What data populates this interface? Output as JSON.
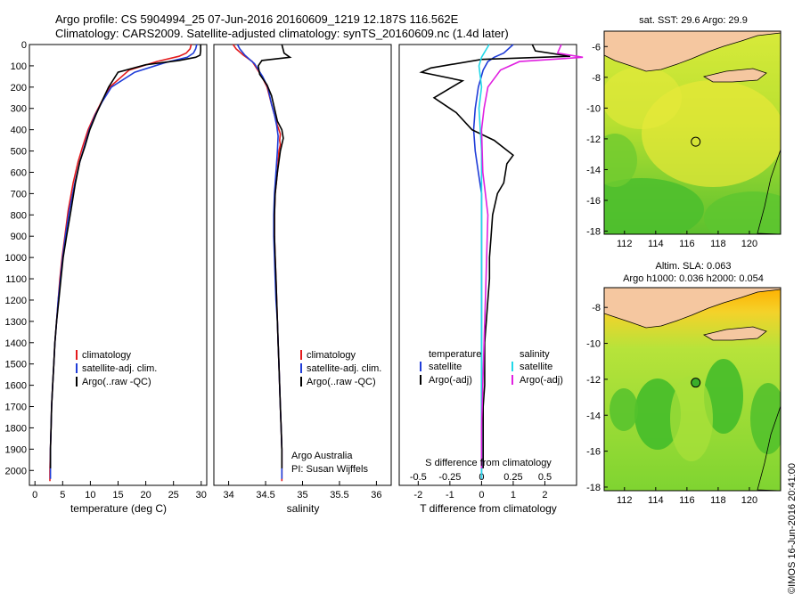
{
  "header": {
    "line1": "Argo profile: CS 5904994_25 07-Jun-2016 20160609_1219 12.187S 116.562E",
    "line2": "Climatology: CARS2009. Satellite-adjusted climatology: synTS_20160609.nc (1.4d later)"
  },
  "colors": {
    "climatology": "#e41a1c",
    "satellite": "#1f3cd8",
    "argo": "#000000",
    "sat_s": "#22d8e8",
    "argo_s": "#e020e0"
  },
  "legend": {
    "climatology": "climatology",
    "satellite": "satellite-adj. clim.",
    "argo": "Argo(..raw -QC)",
    "diff_temperature": "temperature",
    "diff_salinity": "salinity",
    "diff_satellite": "satellite",
    "diff_argo": "Argo(-adj)"
  },
  "annotations": {
    "project": "Argo Australia",
    "pi": "PI: Susan Wijffels"
  },
  "maps": {
    "sst_label": "sat. SST: 29.6 Argo: 29.9",
    "sla_line1": "Altim. SLA: 0.063",
    "sla_line2": "Argo h1000: 0.036 h2000: 0.054",
    "float_lon": 116.562,
    "float_lat": -12.187,
    "x_ticks": [
      112,
      114,
      116,
      118,
      120
    ],
    "sst_y_ticks": [
      -6,
      -8,
      -10,
      -12,
      -14,
      -16,
      -18
    ],
    "sla_y_ticks": [
      -8,
      -10,
      -12,
      -14,
      -16,
      -18
    ]
  },
  "credit": "©IMOS 16-Jun-2016 20:41:00",
  "chart_data": [
    {
      "type": "line",
      "title": "",
      "xlabel": "temperature (deg C)",
      "ylabel": "",
      "xlim": [
        -1,
        31
      ],
      "ylim": [
        2070,
        0
      ],
      "x_ticks": [
        0,
        5,
        10,
        15,
        20,
        25,
        30
      ],
      "y_ticks": [
        0,
        100,
        200,
        300,
        400,
        500,
        600,
        700,
        800,
        900,
        1000,
        1100,
        1200,
        1300,
        1400,
        1500,
        1600,
        1700,
        1800,
        1900,
        2000
      ],
      "series": [
        {
          "name": "climatology",
          "points": [
            [
              28.2,
              0
            ],
            [
              28.0,
              20
            ],
            [
              27.3,
              40
            ],
            [
              26.0,
              55
            ],
            [
              22.0,
              80
            ],
            [
              17.0,
              120
            ],
            [
              13.5,
              200
            ],
            [
              12.0,
              270
            ],
            [
              10.8,
              330
            ],
            [
              9.6,
              400
            ],
            [
              8.6,
              480
            ],
            [
              7.8,
              550
            ],
            [
              6.9,
              650
            ],
            [
              6.0,
              780
            ],
            [
              5.4,
              900
            ],
            [
              4.9,
              1000
            ],
            [
              4.5,
              1100
            ],
            [
              4.2,
              1200
            ],
            [
              3.9,
              1300
            ],
            [
              3.6,
              1400
            ],
            [
              3.4,
              1500
            ],
            [
              3.2,
              1600
            ],
            [
              3.0,
              1700
            ],
            [
              2.9,
              1800
            ],
            [
              2.8,
              1900
            ],
            [
              2.7,
              2000
            ],
            [
              2.7,
              2050
            ]
          ]
        },
        {
          "name": "satellite-adj. clim.",
          "points": [
            [
              29.2,
              0
            ],
            [
              29.0,
              20
            ],
            [
              28.6,
              40
            ],
            [
              27.5,
              60
            ],
            [
              23.5,
              85
            ],
            [
              18.0,
              130
            ],
            [
              13.8,
              200
            ],
            [
              12.1,
              270
            ],
            [
              10.9,
              330
            ],
            [
              9.8,
              400
            ],
            [
              8.9,
              480
            ],
            [
              8.1,
              550
            ],
            [
              7.2,
              650
            ],
            [
              6.2,
              780
            ],
            [
              5.5,
              900
            ],
            [
              5.0,
              1000
            ],
            [
              4.6,
              1100
            ],
            [
              4.2,
              1200
            ],
            [
              3.9,
              1300
            ],
            [
              3.6,
              1400
            ],
            [
              3.4,
              1500
            ],
            [
              3.2,
              1600
            ],
            [
              3.0,
              1700
            ],
            [
              2.9,
              1800
            ],
            [
              2.8,
              1900
            ],
            [
              2.8,
              2000
            ],
            [
              2.8,
              2040
            ]
          ]
        },
        {
          "name": "Argo(..raw -QC)",
          "points": [
            [
              29.9,
              0
            ],
            [
              29.9,
              30
            ],
            [
              29.8,
              50
            ],
            [
              29.0,
              60
            ],
            [
              26.0,
              75
            ],
            [
              20.0,
              95
            ],
            [
              15.0,
              130
            ],
            [
              13.3,
              200
            ],
            [
              12.2,
              260
            ],
            [
              11.0,
              330
            ],
            [
              9.9,
              400
            ],
            [
              9.0,
              480
            ],
            [
              8.1,
              550
            ],
            [
              7.3,
              650
            ],
            [
              6.5,
              780
            ],
            [
              5.7,
              900
            ],
            [
              5.1,
              1000
            ],
            [
              4.7,
              1100
            ],
            [
              4.3,
              1200
            ],
            [
              3.9,
              1300
            ],
            [
              3.6,
              1400
            ],
            [
              3.4,
              1500
            ],
            [
              3.2,
              1600
            ],
            [
              3.0,
              1700
            ],
            [
              2.9,
              1800
            ],
            [
              2.8,
              1900
            ],
            [
              2.8,
              1990
            ]
          ]
        }
      ]
    },
    {
      "type": "line",
      "title": "",
      "xlabel": "salinity",
      "ylabel": "",
      "xlim": [
        33.8,
        36.2
      ],
      "ylim": [
        2070,
        0
      ],
      "x_ticks": [
        34,
        34.5,
        35,
        35.5,
        36
      ],
      "series": [
        {
          "name": "climatology",
          "points": [
            [
              34.06,
              0
            ],
            [
              34.1,
              20
            ],
            [
              34.2,
              50
            ],
            [
              34.32,
              80
            ],
            [
              34.45,
              150
            ],
            [
              34.52,
              200
            ],
            [
              34.58,
              280
            ],
            [
              34.62,
              330
            ],
            [
              34.66,
              380
            ],
            [
              34.7,
              420
            ],
            [
              34.69,
              450
            ],
            [
              34.7,
              470
            ],
            [
              34.68,
              500
            ],
            [
              34.66,
              600
            ],
            [
              34.63,
              700
            ],
            [
              34.62,
              800
            ],
            [
              34.62,
              900
            ],
            [
              34.63,
              1000
            ],
            [
              34.64,
              1100
            ],
            [
              34.65,
              1200
            ],
            [
              34.66,
              1300
            ],
            [
              34.67,
              1400
            ],
            [
              34.68,
              1500
            ],
            [
              34.69,
              1600
            ],
            [
              34.7,
              1700
            ],
            [
              34.71,
              1800
            ],
            [
              34.72,
              1900
            ],
            [
              34.72,
              2000
            ],
            [
              34.72,
              2050
            ]
          ]
        },
        {
          "name": "satellite-adj. clim.",
          "points": [
            [
              34.12,
              0
            ],
            [
              34.15,
              20
            ],
            [
              34.22,
              50
            ],
            [
              34.35,
              90
            ],
            [
              34.46,
              150
            ],
            [
              34.53,
              200
            ],
            [
              34.58,
              280
            ],
            [
              34.62,
              330
            ],
            [
              34.65,
              380
            ],
            [
              34.67,
              430
            ],
            [
              34.66,
              500
            ],
            [
              34.64,
              600
            ],
            [
              34.62,
              700
            ],
            [
              34.61,
              800
            ],
            [
              34.61,
              900
            ],
            [
              34.62,
              1000
            ],
            [
              34.63,
              1100
            ],
            [
              34.64,
              1200
            ],
            [
              34.66,
              1300
            ],
            [
              34.67,
              1400
            ],
            [
              34.68,
              1500
            ],
            [
              34.69,
              1600
            ],
            [
              34.7,
              1700
            ],
            [
              34.71,
              1800
            ],
            [
              34.72,
              1900
            ],
            [
              34.72,
              2000
            ],
            [
              34.72,
              2040
            ]
          ]
        },
        {
          "name": "Argo(..raw -QC)",
          "points": [
            [
              34.72,
              0
            ],
            [
              34.75,
              40
            ],
            [
              34.83,
              60
            ],
            [
              34.45,
              75
            ],
            [
              34.4,
              100
            ],
            [
              34.42,
              140
            ],
            [
              34.52,
              190
            ],
            [
              34.58,
              240
            ],
            [
              34.62,
              300
            ],
            [
              34.66,
              360
            ],
            [
              34.72,
              400
            ],
            [
              34.74,
              440
            ],
            [
              34.7,
              500
            ],
            [
              34.66,
              600
            ],
            [
              34.63,
              700
            ],
            [
              34.62,
              800
            ],
            [
              34.62,
              900
            ],
            [
              34.63,
              1000
            ],
            [
              34.64,
              1100
            ],
            [
              34.65,
              1200
            ],
            [
              34.66,
              1300
            ],
            [
              34.67,
              1400
            ],
            [
              34.68,
              1500
            ],
            [
              34.69,
              1600
            ],
            [
              34.7,
              1700
            ],
            [
              34.71,
              1800
            ],
            [
              34.72,
              1900
            ],
            [
              34.72,
              1990
            ]
          ]
        }
      ]
    },
    {
      "type": "line",
      "title": "",
      "xlabel": "T difference from climatology",
      "x2label": "S difference from climatology",
      "ylabel": "",
      "xlim": [
        -2.6,
        3.0
      ],
      "ylim": [
        2070,
        0
      ],
      "x_ticks": [
        -2,
        -1,
        0,
        1,
        2
      ],
      "x2_ticks": [
        -0.5,
        -0.25,
        0,
        0.25,
        0.5
      ],
      "series": [
        {
          "name": "T satellite",
          "points": [
            [
              1.0,
              0
            ],
            [
              0.7,
              40
            ],
            [
              0.4,
              60
            ],
            [
              0.2,
              80
            ],
            [
              0.05,
              120
            ],
            [
              -0.1,
              200
            ],
            [
              -0.2,
              300
            ],
            [
              -0.25,
              400
            ],
            [
              -0.2,
              500
            ],
            [
              -0.1,
              600
            ],
            [
              0.0,
              700
            ],
            [
              0.0,
              800
            ],
            [
              0.0,
              1000
            ],
            [
              0.0,
              1200
            ],
            [
              0.0,
              1400
            ],
            [
              0.0,
              1600
            ],
            [
              0.0,
              1800
            ],
            [
              0.0,
              2000
            ],
            [
              0.0,
              2040
            ]
          ]
        },
        {
          "name": "T Argo(-adj)",
          "points": [
            [
              1.6,
              0
            ],
            [
              1.7,
              30
            ],
            [
              2.8,
              55
            ],
            [
              0.0,
              70
            ],
            [
              -1.6,
              110
            ],
            [
              -1.9,
              130
            ],
            [
              -0.6,
              170
            ],
            [
              -1.5,
              250
            ],
            [
              -0.8,
              320
            ],
            [
              -0.3,
              400
            ],
            [
              0.4,
              450
            ],
            [
              1.0,
              520
            ],
            [
              0.8,
              560
            ],
            [
              0.7,
              650
            ],
            [
              0.5,
              700
            ],
            [
              0.35,
              800
            ],
            [
              0.3,
              900
            ],
            [
              0.25,
              1000
            ],
            [
              0.25,
              1100
            ],
            [
              0.2,
              1200
            ],
            [
              0.15,
              1300
            ],
            [
              0.1,
              1400
            ],
            [
              0.1,
              1500
            ],
            [
              0.1,
              1600
            ],
            [
              0.05,
              1700
            ],
            [
              0.05,
              1800
            ],
            [
              0.05,
              1900
            ],
            [
              0.05,
              1990
            ]
          ]
        },
        {
          "name": "S satellite",
          "points": [
            [
              0.06,
              0
            ],
            [
              0.0,
              60
            ],
            [
              -0.02,
              100
            ],
            [
              0.0,
              200
            ],
            [
              -0.02,
              300
            ],
            [
              -0.01,
              400
            ],
            [
              0.0,
              500
            ],
            [
              0.0,
              700
            ],
            [
              0.0,
              1000
            ],
            [
              0.0,
              1300
            ],
            [
              0.0,
              1600
            ],
            [
              0.0,
              2000
            ],
            [
              0.0,
              2040
            ]
          ]
        },
        {
          "name": "S Argo(-adj)",
          "points": [
            [
              0.63,
              0
            ],
            [
              0.6,
              40
            ],
            [
              0.8,
              60
            ],
            [
              0.3,
              80
            ],
            [
              0.15,
              120
            ],
            [
              0.05,
              200
            ],
            [
              0.02,
              300
            ],
            [
              0.0,
              400
            ],
            [
              0.01,
              600
            ],
            [
              0.03,
              700
            ],
            [
              0.05,
              800
            ],
            [
              0.04,
              1000
            ],
            [
              0.03,
              1200
            ],
            [
              0.02,
              1400
            ],
            [
              0.01,
              1600
            ],
            [
              0.0,
              1800
            ],
            [
              0.0,
              1990
            ]
          ]
        }
      ]
    }
  ]
}
